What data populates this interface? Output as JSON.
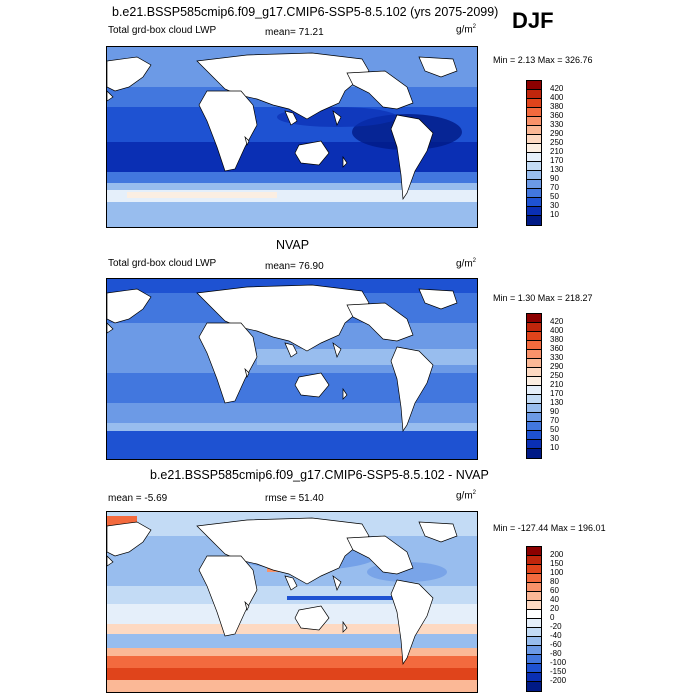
{
  "figure": {
    "season": "DJF",
    "panels": [
      {
        "title": "b.e21.BSSP585cmip6.f09_g17.CMIP6-SSP5-8.5.102 (yrs 2075-2099)",
        "left_label": "Total grd-box cloud LWP",
        "mean_text": "mean=  71.21",
        "units": "g/m",
        "units_exp": "2",
        "minmax": "Min =   2.13 Max = 326.76",
        "colorbar": {
          "labels": [
            "420",
            "400",
            "380",
            "360",
            "330",
            "290",
            "250",
            "210",
            "170",
            "130",
            "90",
            "70",
            "50",
            "30",
            "10"
          ],
          "colors": [
            "#8c0000",
            "#c0260c",
            "#e0441b",
            "#f36a3e",
            "#f9926a",
            "#fbb896",
            "#fdd9c2",
            "#fbeee2",
            "#e5effa",
            "#c3dbf5",
            "#98bdee",
            "#6c9ae6",
            "#4277de",
            "#1e52d2",
            "#0a2fb4",
            "#001a86"
          ]
        }
      },
      {
        "title": "NVAP",
        "left_label": "Total grd-box cloud LWP",
        "mean_text": "mean=  76.90",
        "units": "g/m",
        "units_exp": "2",
        "minmax": "Min =   1.30 Max = 218.27",
        "colorbar": {
          "labels": [
            "420",
            "400",
            "380",
            "360",
            "330",
            "290",
            "250",
            "210",
            "170",
            "130",
            "90",
            "70",
            "50",
            "30",
            "10"
          ],
          "colors": [
            "#8c0000",
            "#c0260c",
            "#e0441b",
            "#f36a3e",
            "#f9926a",
            "#fbb896",
            "#fdd9c2",
            "#fbeee2",
            "#e5effa",
            "#c3dbf5",
            "#98bdee",
            "#6c9ae6",
            "#4277de",
            "#1e52d2",
            "#0a2fb4",
            "#001a86"
          ]
        }
      },
      {
        "title": "b.e21.BSSP585cmip6.f09_g17.CMIP6-SSP5-8.5.102 - NVAP",
        "left_label": "mean =  -5.69",
        "mean_text": "rmse =  51.40",
        "units": "g/m",
        "units_exp": "2",
        "minmax": "Min = -127.44 Max = 196.01",
        "colorbar": {
          "labels": [
            "200",
            "150",
            "100",
            "80",
            "60",
            "40",
            "20",
            "0",
            "-20",
            "-40",
            "-60",
            "-80",
            "-100",
            "-150",
            "-200"
          ],
          "colors": [
            "#8c0000",
            "#c0260c",
            "#e0441b",
            "#f36a3e",
            "#f9926a",
            "#fbb896",
            "#fdd9c2",
            "#ffffff",
            "#e5effa",
            "#c3dbf5",
            "#98bdee",
            "#6c9ae6",
            "#4277de",
            "#1e52d2",
            "#0a2fb4",
            "#001a86"
          ]
        }
      }
    ]
  }
}
